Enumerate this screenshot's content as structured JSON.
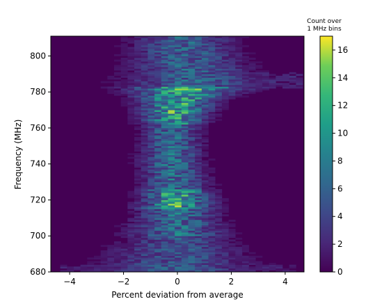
{
  "chart_data": {
    "type": "heatmap",
    "title": "",
    "xlabel": "Percent deviation from average",
    "ylabel": "Frequency (MHz)",
    "xlim": [
      -4.7,
      4.7
    ],
    "ylim": [
      680,
      811
    ],
    "x_ticks": [
      -4,
      -2,
      0,
      2,
      4
    ],
    "x_tick_labels": [
      "−4",
      "−2",
      "0",
      "2",
      "4"
    ],
    "y_ticks": [
      680,
      700,
      720,
      740,
      760,
      780,
      800
    ],
    "y_tick_labels": [
      "680",
      "700",
      "720",
      "740",
      "760",
      "780",
      "800"
    ],
    "bin_height_mhz": 1,
    "approx_x_bin_width_percent": 0.25,
    "colorbar": {
      "title_lines": [
        "Count over",
        "1 MHz bins"
      ],
      "range": [
        0,
        17
      ],
      "ticks": [
        0,
        2,
        4,
        6,
        8,
        10,
        12,
        14,
        16
      ],
      "colormap": "viridis"
    },
    "density_profile": {
      "description_of_bands": "Counts concentrated in a band centered near 0% deviation; band widens to about -2.5..+2.5 near 790-805 MHz and near 680-700 MHz; maxima (~16-17) near 720 MHz and 770-780 MHz around 0%.",
      "center_pct_by_freq": [
        {
          "freq": 680,
          "center": 0.0,
          "width": 2.6
        },
        {
          "freq": 700,
          "center": 0.0,
          "width": 1.6
        },
        {
          "freq": 720,
          "center": 0.0,
          "width": 1.1
        },
        {
          "freq": 740,
          "center": -0.2,
          "width": 1.0
        },
        {
          "freq": 760,
          "center": -0.2,
          "width": 0.9
        },
        {
          "freq": 775,
          "center": 0.0,
          "width": 1.2
        },
        {
          "freq": 785,
          "center": 0.6,
          "width": 2.2
        },
        {
          "freq": 795,
          "center": 0.4,
          "width": 1.8
        },
        {
          "freq": 805,
          "center": 0.2,
          "width": 1.6
        }
      ],
      "peak_count": 17
    },
    "grid": false,
    "legend": "none"
  }
}
